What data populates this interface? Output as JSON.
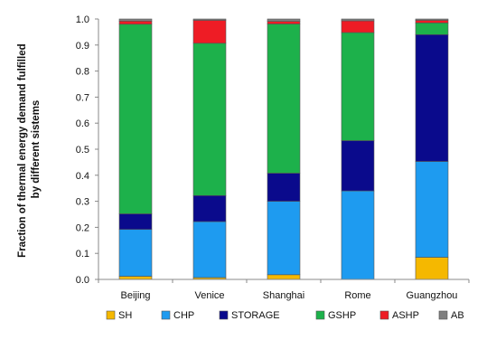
{
  "chart_data": {
    "type": "bar",
    "stacked": true,
    "title": "",
    "ylabel_lines": [
      "Fraction of thermal energy demand fulfilled",
      "by different sistems"
    ],
    "xlabel": "",
    "categories": [
      "Beijing",
      "Venice",
      "Shanghai",
      "Rome",
      "Guangzhou"
    ],
    "ylim": [
      0,
      1
    ],
    "yticks": [
      "0.0",
      "0.1",
      "0.2",
      "0.3",
      "0.4",
      "0.5",
      "0.6",
      "0.7",
      "0.8",
      "0.9",
      "1.0"
    ],
    "grid": false,
    "legend_position": "bottom",
    "series": [
      {
        "name": "SH",
        "color": "#f5b800",
        "values": [
          0.012,
          0.007,
          0.018,
          0.0,
          0.085
        ]
      },
      {
        "name": "CHP",
        "color": "#1e9bf0",
        "values": [
          0.18,
          0.215,
          0.282,
          0.34,
          0.368
        ]
      },
      {
        "name": "STORAGE",
        "color": "#0a0a8c",
        "values": [
          0.06,
          0.1,
          0.108,
          0.193,
          0.487
        ]
      },
      {
        "name": "GSHP",
        "color": "#1db14b",
        "values": [
          0.728,
          0.585,
          0.573,
          0.415,
          0.045
        ]
      },
      {
        "name": "ASHP",
        "color": "#ee1c25",
        "values": [
          0.012,
          0.088,
          0.01,
          0.045,
          0.01
        ]
      },
      {
        "name": "AB",
        "color": "#7f7f7f",
        "values": [
          0.008,
          0.005,
          0.009,
          0.007,
          0.005
        ]
      }
    ]
  }
}
